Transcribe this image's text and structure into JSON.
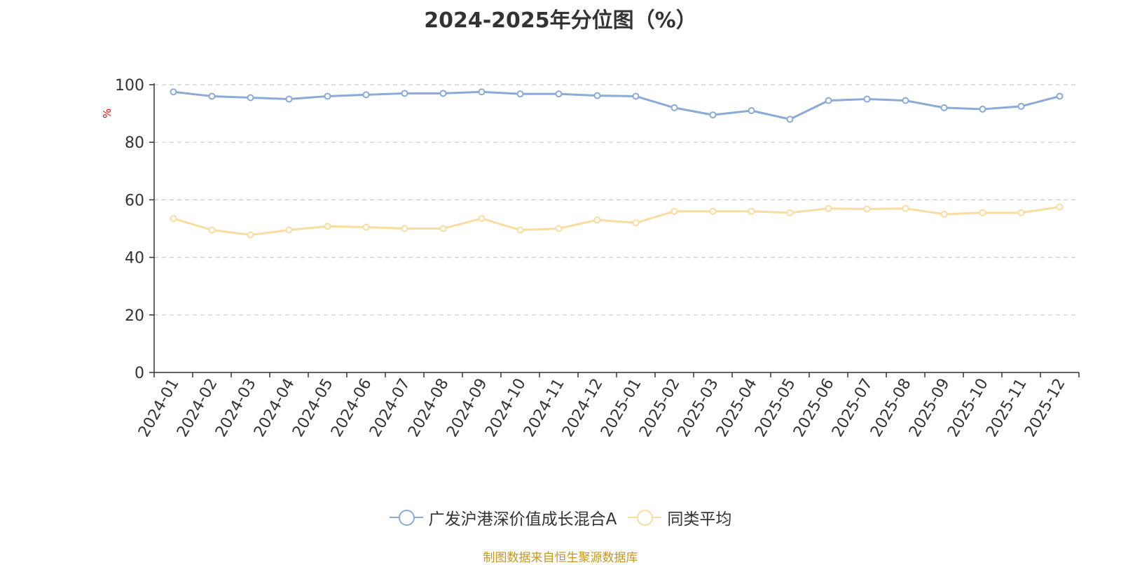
{
  "chart_data": {
    "type": "line",
    "title": "2024-2025年分位图（%）",
    "ylabel": "%",
    "ylim": [
      0,
      100
    ],
    "yticks": [
      0,
      20,
      40,
      60,
      80,
      100
    ],
    "grid": true,
    "legend_position": "bottom",
    "categories": [
      "2024-01",
      "2024-02",
      "2024-03",
      "2024-04",
      "2024-05",
      "2024-06",
      "2024-07",
      "2024-08",
      "2024-09",
      "2024-10",
      "2024-11",
      "2024-12",
      "2025-01",
      "2025-02",
      "2025-03",
      "2025-04",
      "2025-05",
      "2025-06",
      "2025-07",
      "2025-08",
      "2025-09",
      "2025-10",
      "2025-11",
      "2025-12"
    ],
    "series": [
      {
        "name": "广发沪港深价值成长混合A",
        "color": "#8aaad8",
        "values": [
          97.5,
          96.0,
          95.5,
          95.0,
          96.0,
          96.5,
          97.0,
          97.0,
          97.5,
          96.8,
          96.8,
          96.2,
          96.0,
          92.0,
          89.5,
          91.0,
          88.0,
          94.5,
          95.0,
          94.5,
          92.0,
          91.5,
          92.5,
          96.0
        ]
      },
      {
        "name": "同类平均",
        "color": "#fbdca0",
        "values": [
          53.5,
          49.5,
          47.8,
          49.5,
          50.8,
          50.5,
          50.0,
          50.0,
          53.5,
          49.5,
          50.0,
          53.0,
          52.0,
          56.0,
          56.0,
          56.0,
          55.5,
          57.0,
          56.8,
          57.0,
          55.0,
          55.5,
          55.5,
          57.5
        ]
      }
    ]
  },
  "source_note": "制图数据来自恒生聚源数据库",
  "colors": {
    "axis": "#333333",
    "grid": "#cccccc",
    "ylabel": "#ff0000",
    "source_note": "#c8961e"
  }
}
